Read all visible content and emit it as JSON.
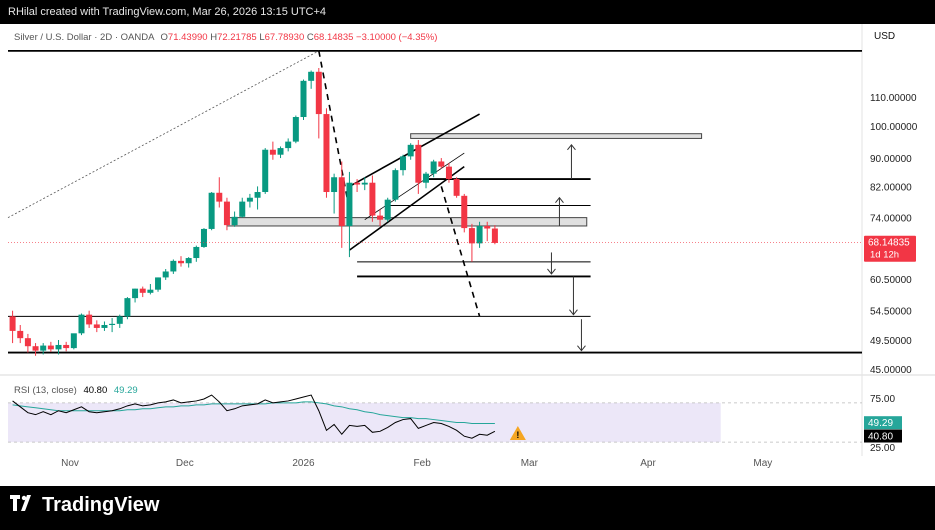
{
  "header": {
    "watermark": "RHilal created with TradingView.com, Mar 26, 2026 13:15 UTC+4"
  },
  "legend": {
    "symbol": "Silver / U.S. Dollar · 2D · OANDA",
    "o_label": "O",
    "o": "71.43990",
    "h_label": "H",
    "h": "72.21785",
    "l_label": "L",
    "l": "67.78930",
    "c_label": "C",
    "c": "68.14835",
    "change": "−3.10000 (−4.35%)"
  },
  "currency": "USD",
  "price_tag": {
    "value": "68.14835",
    "countdown": "1d 12h"
  },
  "rsi": {
    "title": "RSI (13, close)",
    "value": "40.80",
    "ma_value": "49.29",
    "warning_icon": "warning-icon"
  },
  "brand": {
    "name": "TradingView",
    "icon": "tradingview-logo-icon"
  },
  "colors": {
    "up": "#089981",
    "down": "#f23645",
    "rsi_line": "#000000",
    "rsi_ma": "#26a69a",
    "rsi_band": "#ece7f8"
  },
  "chart_data": [
    {
      "type": "candlestick",
      "title": "Silver / U.S. Dollar · 2D · OANDA",
      "y_tick_labels": [
        "110.00000",
        "100.00000",
        "90.00000",
        "82.00000",
        "74.00000",
        "60.50000",
        "54.50000",
        "49.50000",
        "45.00000"
      ],
      "y_ticks": [
        110,
        100,
        90,
        82,
        74,
        60.5,
        54.5,
        49.5,
        45
      ],
      "y_scale": "log",
      "x_ticks": [
        {
          "label": "Nov",
          "date": "2025-11-01"
        },
        {
          "label": "Dec",
          "date": "2025-12-01"
        },
        {
          "label": "2026",
          "date": "2026-01-01"
        },
        {
          "label": "Feb",
          "date": "2026-02-01"
        },
        {
          "label": "Mar",
          "date": "2026-03-01"
        },
        {
          "label": "Apr",
          "date": "2026-04-01"
        },
        {
          "label": "May",
          "date": "2026-05-01"
        }
      ],
      "candles": [
        {
          "date": "2025-10-17",
          "o": 53.5,
          "h": 54.5,
          "l": 49.0,
          "c": 51.0
        },
        {
          "date": "2025-10-19",
          "o": 51.0,
          "h": 52.0,
          "l": 49.0,
          "c": 49.8
        },
        {
          "date": "2025-10-21",
          "o": 49.8,
          "h": 50.5,
          "l": 47.5,
          "c": 48.5
        },
        {
          "date": "2025-10-23",
          "o": 48.5,
          "h": 49.0,
          "l": 47.0,
          "c": 47.8
        },
        {
          "date": "2025-10-25",
          "o": 47.8,
          "h": 49.0,
          "l": 47.2,
          "c": 48.6
        },
        {
          "date": "2025-10-27",
          "o": 48.6,
          "h": 49.2,
          "l": 47.6,
          "c": 48.0
        },
        {
          "date": "2025-10-29",
          "o": 48.0,
          "h": 49.5,
          "l": 47.2,
          "c": 48.7
        },
        {
          "date": "2025-10-31",
          "o": 48.7,
          "h": 49.2,
          "l": 47.7,
          "c": 48.2
        },
        {
          "date": "2025-11-02",
          "o": 48.2,
          "h": 50.5,
          "l": 48.0,
          "c": 50.6
        },
        {
          "date": "2025-11-04",
          "o": 50.6,
          "h": 54.0,
          "l": 50.3,
          "c": 53.8
        },
        {
          "date": "2025-11-06",
          "o": 53.8,
          "h": 54.5,
          "l": 51.5,
          "c": 52.1
        },
        {
          "date": "2025-11-08",
          "o": 52.1,
          "h": 52.8,
          "l": 50.8,
          "c": 51.5
        },
        {
          "date": "2025-11-10",
          "o": 51.5,
          "h": 52.6,
          "l": 51.0,
          "c": 52.0
        },
        {
          "date": "2025-11-12",
          "o": 52.0,
          "h": 53.2,
          "l": 50.8,
          "c": 52.2
        },
        {
          "date": "2025-11-14",
          "o": 52.2,
          "h": 53.8,
          "l": 51.5,
          "c": 53.5
        },
        {
          "date": "2025-11-16",
          "o": 53.5,
          "h": 57.0,
          "l": 53.0,
          "c": 56.8
        },
        {
          "date": "2025-11-18",
          "o": 56.8,
          "h": 58.6,
          "l": 56.0,
          "c": 58.6
        },
        {
          "date": "2025-11-20",
          "o": 58.6,
          "h": 59.0,
          "l": 57.0,
          "c": 57.8
        },
        {
          "date": "2025-11-22",
          "o": 57.8,
          "h": 59.5,
          "l": 57.5,
          "c": 58.4
        },
        {
          "date": "2025-11-24",
          "o": 58.4,
          "h": 60.8,
          "l": 58.0,
          "c": 60.8
        },
        {
          "date": "2025-11-26",
          "o": 60.8,
          "h": 62.5,
          "l": 60.3,
          "c": 62.0
        },
        {
          "date": "2025-11-28",
          "o": 62.0,
          "h": 64.5,
          "l": 61.5,
          "c": 64.2
        },
        {
          "date": "2025-11-30",
          "o": 64.2,
          "h": 65.2,
          "l": 63.0,
          "c": 63.7
        },
        {
          "date": "2025-12-02",
          "o": 63.7,
          "h": 65.0,
          "l": 62.8,
          "c": 64.8
        },
        {
          "date": "2025-12-04",
          "o": 64.8,
          "h": 67.5,
          "l": 64.0,
          "c": 67.2
        },
        {
          "date": "2025-12-06",
          "o": 67.2,
          "h": 71.5,
          "l": 67.0,
          "c": 71.3
        },
        {
          "date": "2025-12-08",
          "o": 71.3,
          "h": 80.5,
          "l": 71.0,
          "c": 80.3
        },
        {
          "date": "2025-12-10",
          "o": 80.3,
          "h": 84.5,
          "l": 76.5,
          "c": 78.0
        },
        {
          "date": "2025-12-12",
          "o": 78.0,
          "h": 79.0,
          "l": 71.0,
          "c": 72.2
        },
        {
          "date": "2025-12-14",
          "o": 72.2,
          "h": 75.5,
          "l": 71.8,
          "c": 74.2
        },
        {
          "date": "2025-12-16",
          "o": 74.2,
          "h": 79.0,
          "l": 74.0,
          "c": 78.0
        },
        {
          "date": "2025-12-18",
          "o": 78.0,
          "h": 80.0,
          "l": 76.5,
          "c": 79.0
        },
        {
          "date": "2025-12-20",
          "o": 79.0,
          "h": 82.0,
          "l": 76.0,
          "c": 80.5
        },
        {
          "date": "2025-12-22",
          "o": 80.5,
          "h": 93.0,
          "l": 80.0,
          "c": 92.5
        },
        {
          "date": "2025-12-24",
          "o": 92.5,
          "h": 95.0,
          "l": 89.5,
          "c": 91.0
        },
        {
          "date": "2025-12-26",
          "o": 91.0,
          "h": 93.5,
          "l": 90.0,
          "c": 93.0
        },
        {
          "date": "2025-12-28",
          "o": 93.0,
          "h": 96.0,
          "l": 92.0,
          "c": 95.0
        },
        {
          "date": "2025-12-30",
          "o": 95.0,
          "h": 103.5,
          "l": 94.5,
          "c": 103.0
        },
        {
          "date": "2026-01-01",
          "o": 103.0,
          "h": 116.5,
          "l": 102.0,
          "c": 116.0
        },
        {
          "date": "2026-01-03",
          "o": 116.0,
          "h": 120.0,
          "l": 113.0,
          "c": 119.5
        },
        {
          "date": "2026-01-05",
          "o": 119.5,
          "h": 121.0,
          "l": 96.0,
          "c": 104.0
        },
        {
          "date": "2026-01-07",
          "o": 104.0,
          "h": 106.0,
          "l": 79.0,
          "c": 80.5
        },
        {
          "date": "2026-01-09",
          "o": 80.5,
          "h": 85.5,
          "l": 75.0,
          "c": 84.5
        },
        {
          "date": "2026-01-11",
          "o": 84.5,
          "h": 89.0,
          "l": 67.0,
          "c": 72.0
        },
        {
          "date": "2026-01-13",
          "o": 72.0,
          "h": 86.0,
          "l": 65.0,
          "c": 83.0
        },
        {
          "date": "2026-01-15",
          "o": 83.0,
          "h": 84.0,
          "l": 80.5,
          "c": 82.5
        },
        {
          "date": "2026-01-17",
          "o": 82.5,
          "h": 84.5,
          "l": 81.0,
          "c": 83.0
        },
        {
          "date": "2026-01-19",
          "o": 83.0,
          "h": 85.0,
          "l": 73.0,
          "c": 74.5
        },
        {
          "date": "2026-01-21",
          "o": 74.5,
          "h": 76.0,
          "l": 72.0,
          "c": 73.5
        },
        {
          "date": "2026-01-23",
          "o": 73.5,
          "h": 79.0,
          "l": 73.0,
          "c": 78.5
        },
        {
          "date": "2026-01-25",
          "o": 78.5,
          "h": 87.0,
          "l": 78.0,
          "c": 86.5
        },
        {
          "date": "2026-01-27",
          "o": 86.5,
          "h": 91.0,
          "l": 85.0,
          "c": 90.5
        },
        {
          "date": "2026-01-29",
          "o": 90.5,
          "h": 94.5,
          "l": 89.5,
          "c": 94.0
        },
        {
          "date": "2026-01-31",
          "o": 94.0,
          "h": 95.5,
          "l": 80.0,
          "c": 83.0
        },
        {
          "date": "2026-02-02",
          "o": 83.0,
          "h": 86.0,
          "l": 81.5,
          "c": 85.5
        },
        {
          "date": "2026-02-04",
          "o": 85.5,
          "h": 89.5,
          "l": 84.5,
          "c": 89.0
        },
        {
          "date": "2026-02-06",
          "o": 89.0,
          "h": 90.0,
          "l": 87.0,
          "c": 87.5
        },
        {
          "date": "2026-02-08",
          "o": 87.5,
          "h": 88.5,
          "l": 83.0,
          "c": 84.0
        },
        {
          "date": "2026-02-10",
          "o": 84.0,
          "h": 84.5,
          "l": 79.0,
          "c": 79.5
        },
        {
          "date": "2026-02-12",
          "o": 79.5,
          "h": 80.0,
          "l": 70.5,
          "c": 71.5
        },
        {
          "date": "2026-02-14",
          "o": 71.5,
          "h": 72.5,
          "l": 64.0,
          "c": 68.0
        },
        {
          "date": "2026-02-16",
          "o": 68.0,
          "h": 73.0,
          "l": 67.0,
          "c": 72.0
        },
        {
          "date": "2026-02-18",
          "o": 72.0,
          "h": 73.0,
          "l": 68.5,
          "c": 71.4
        },
        {
          "date": "2026-02-20",
          "o": 71.4,
          "h": 72.2,
          "l": 67.8,
          "c": 68.1
        }
      ],
      "levels": [
        {
          "kind": "solid-thick",
          "y": 128.0
        },
        {
          "kind": "zone",
          "y1": 97.5,
          "y2": 96.0
        },
        {
          "kind": "solid-thick",
          "y": 84.0
        },
        {
          "kind": "solid-thin",
          "y": 77.0
        },
        {
          "kind": "zone",
          "y1": 74.0,
          "y2": 72.0
        },
        {
          "kind": "solid-thin",
          "y": 64.0
        },
        {
          "kind": "solid-thick",
          "y": 61.0
        },
        {
          "kind": "solid-thin",
          "y": 53.5
        },
        {
          "kind": "solid-thick",
          "y": 47.5
        }
      ]
    },
    {
      "type": "line",
      "title": "RSI (13, close)",
      "y_tick_labels": [
        "75.00",
        "25.00"
      ],
      "y_ticks": [
        75,
        25
      ],
      "band": [
        70,
        30
      ],
      "series": [
        {
          "name": "RSI",
          "values": [
            72,
            66,
            60,
            58,
            61,
            58,
            62,
            60,
            63,
            66,
            61,
            60,
            61,
            62,
            64,
            67,
            69,
            67,
            68,
            70,
            71,
            73,
            70,
            71,
            72,
            74,
            78,
            71,
            62,
            64,
            67,
            68,
            69,
            73,
            70,
            71,
            72,
            74,
            76,
            78,
            62,
            42,
            48,
            38,
            47,
            46,
            47,
            40,
            41,
            45,
            50,
            53,
            54,
            44,
            47,
            50,
            49,
            46,
            42,
            36,
            34,
            38,
            37,
            41
          ]
        },
        {
          "name": "MA",
          "values": [
            68,
            67,
            66,
            65,
            64,
            63,
            62,
            62,
            62,
            62,
            62,
            62,
            62,
            62,
            62,
            63,
            63,
            64,
            64,
            65,
            66,
            66,
            67,
            67,
            68,
            68,
            69,
            69,
            69,
            69,
            69,
            69,
            69,
            69,
            70,
            70,
            70,
            70,
            71,
            71,
            70,
            69,
            67,
            66,
            64,
            63,
            61,
            60,
            58,
            57,
            56,
            55,
            55,
            54,
            54,
            53,
            52,
            51,
            50,
            50,
            49,
            49,
            49,
            49
          ]
        }
      ]
    }
  ]
}
